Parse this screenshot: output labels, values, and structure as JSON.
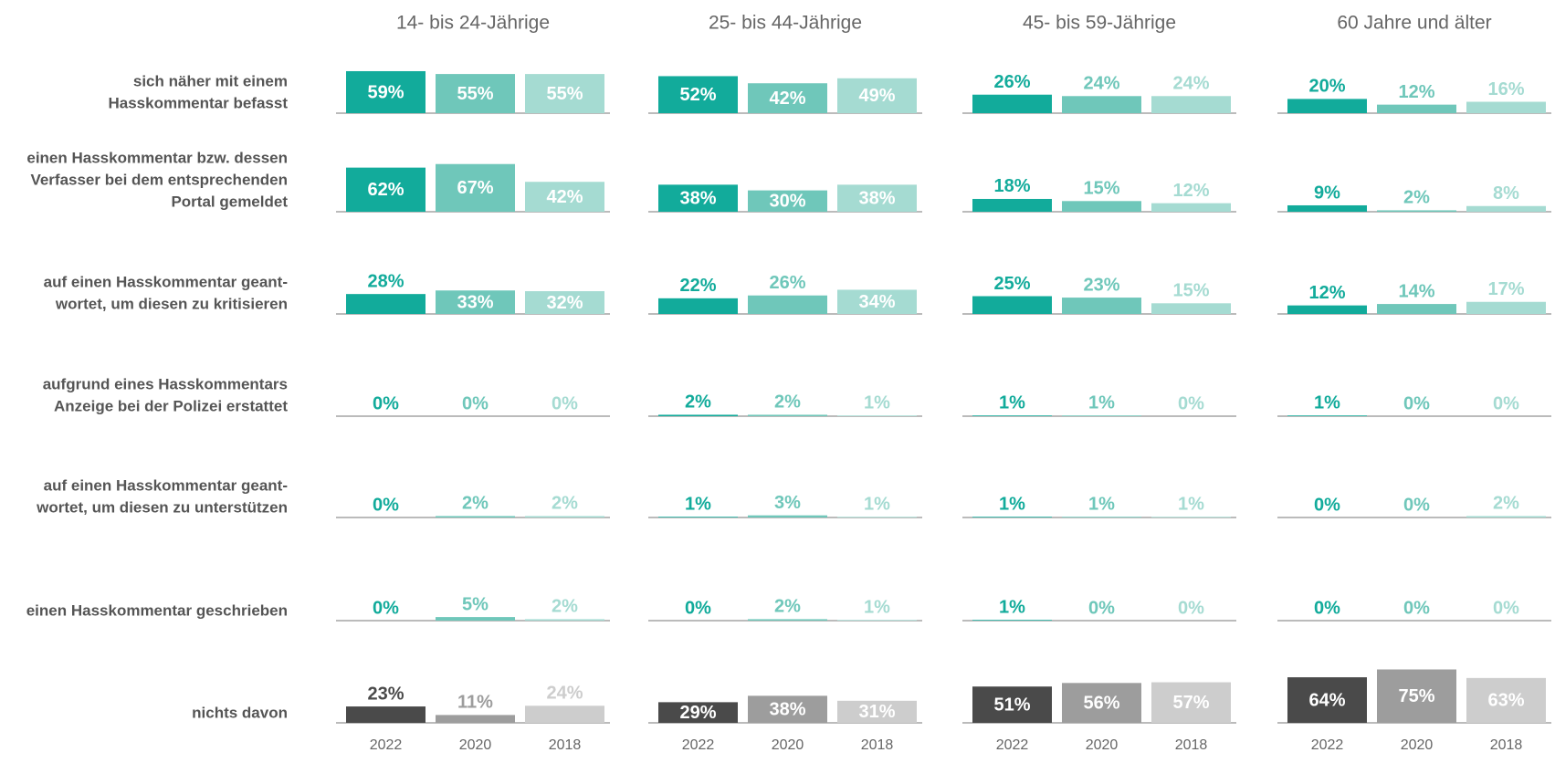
{
  "chart_data": {
    "type": "bar",
    "groups": [
      "14- bis 24-Jährige",
      "25- bis 44-Jährige",
      "45- bis 59-Jährige",
      "60 Jahre und älter"
    ],
    "series": [
      {
        "name": "2022",
        "color": "#12ab9b",
        "alt_color": "#4a4a4a"
      },
      {
        "name": "2020",
        "color": "#6fc7ba",
        "alt_color": "#9d9d9d"
      },
      {
        "name": "2018",
        "color": "#a5dbd2",
        "alt_color": "#cdcdcd"
      }
    ],
    "ylim": [
      0,
      100
    ],
    "rows": [
      {
        "label": [
          "sich näher mit einem",
          "Hasskommentar befasst"
        ],
        "values": [
          [
            59,
            55,
            55
          ],
          [
            52,
            42,
            49
          ],
          [
            26,
            24,
            24
          ],
          [
            20,
            12,
            16
          ]
        ],
        "value_labels": [
          [
            "59%",
            "55%",
            "55%"
          ],
          [
            "52%",
            "42%",
            "49%"
          ],
          [
            "26%",
            "24%",
            "24%"
          ],
          [
            "20%",
            "12%",
            "16%"
          ]
        ]
      },
      {
        "label": [
          "einen Hasskommentar bzw. dessen",
          "Verfasser bei dem entsprechenden",
          "Portal gemeldet"
        ],
        "values": [
          [
            62,
            67,
            42
          ],
          [
            38,
            30,
            38
          ],
          [
            18,
            15,
            12
          ],
          [
            9,
            2,
            8
          ]
        ],
        "value_labels": [
          [
            "62%",
            "67%",
            "42%"
          ],
          [
            "38%",
            "30%",
            "38%"
          ],
          [
            "18%",
            "15%",
            "12%"
          ],
          [
            "9%",
            "2%",
            "8%"
          ]
        ]
      },
      {
        "label": [
          "auf einen Hasskommentar geant-",
          "wortet, um diesen zu kritisieren"
        ],
        "values": [
          [
            28,
            33,
            32
          ],
          [
            22,
            26,
            34
          ],
          [
            25,
            23,
            15
          ],
          [
            12,
            14,
            17
          ]
        ],
        "value_labels": [
          [
            "28%",
            "33%",
            "32%"
          ],
          [
            "22%",
            "26%",
            "34%"
          ],
          [
            "25%",
            "23%",
            "15%"
          ],
          [
            "12%",
            "14%",
            "17%"
          ]
        ]
      },
      {
        "label": [
          "aufgrund eines Hasskommentars",
          "Anzeige bei der Polizei erstattet"
        ],
        "values": [
          [
            0,
            0,
            0
          ],
          [
            2,
            2,
            1
          ],
          [
            1,
            1,
            0
          ],
          [
            1,
            0,
            0
          ]
        ],
        "value_labels": [
          [
            "0%",
            "0%",
            "0%"
          ],
          [
            "2%",
            "2%",
            "1%"
          ],
          [
            "1%",
            "1%",
            "0%"
          ],
          [
            "1%",
            "0%",
            "0%"
          ]
        ]
      },
      {
        "label": [
          "auf einen Hasskommentar geant-",
          "wortet, um diesen zu unterstützen"
        ],
        "values": [
          [
            0,
            2,
            2
          ],
          [
            1,
            3,
            1
          ],
          [
            1,
            1,
            1
          ],
          [
            0,
            0,
            2
          ]
        ],
        "value_labels": [
          [
            "0%",
            "2%",
            "2%"
          ],
          [
            "1%",
            "3%",
            "1%"
          ],
          [
            "1%",
            "1%",
            "1%"
          ],
          [
            "0%",
            "0%",
            "2%"
          ]
        ]
      },
      {
        "label": [
          "einen Hasskommentar geschrieben"
        ],
        "values": [
          [
            0,
            5,
            2
          ],
          [
            0,
            2,
            1
          ],
          [
            1,
            0,
            0
          ],
          [
            0,
            0,
            0
          ]
        ],
        "value_labels": [
          [
            "0%",
            "5%",
            "2%"
          ],
          [
            "0%",
            "2%",
            "1%"
          ],
          [
            "1%",
            "0%",
            "0%"
          ],
          [
            "0%",
            "0%",
            "0%"
          ]
        ]
      },
      {
        "label": [
          "nichts davon"
        ],
        "alt": true,
        "values": [
          [
            23,
            11,
            24
          ],
          [
            29,
            38,
            31
          ],
          [
            51,
            56,
            57
          ],
          [
            64,
            75,
            63
          ]
        ],
        "value_labels": [
          [
            "23%",
            "11%",
            "24%"
          ],
          [
            "29%",
            "38%",
            "31%"
          ],
          [
            "51%",
            "56%",
            "57%"
          ],
          [
            "64%",
            "75%",
            "63%"
          ]
        ]
      }
    ]
  }
}
